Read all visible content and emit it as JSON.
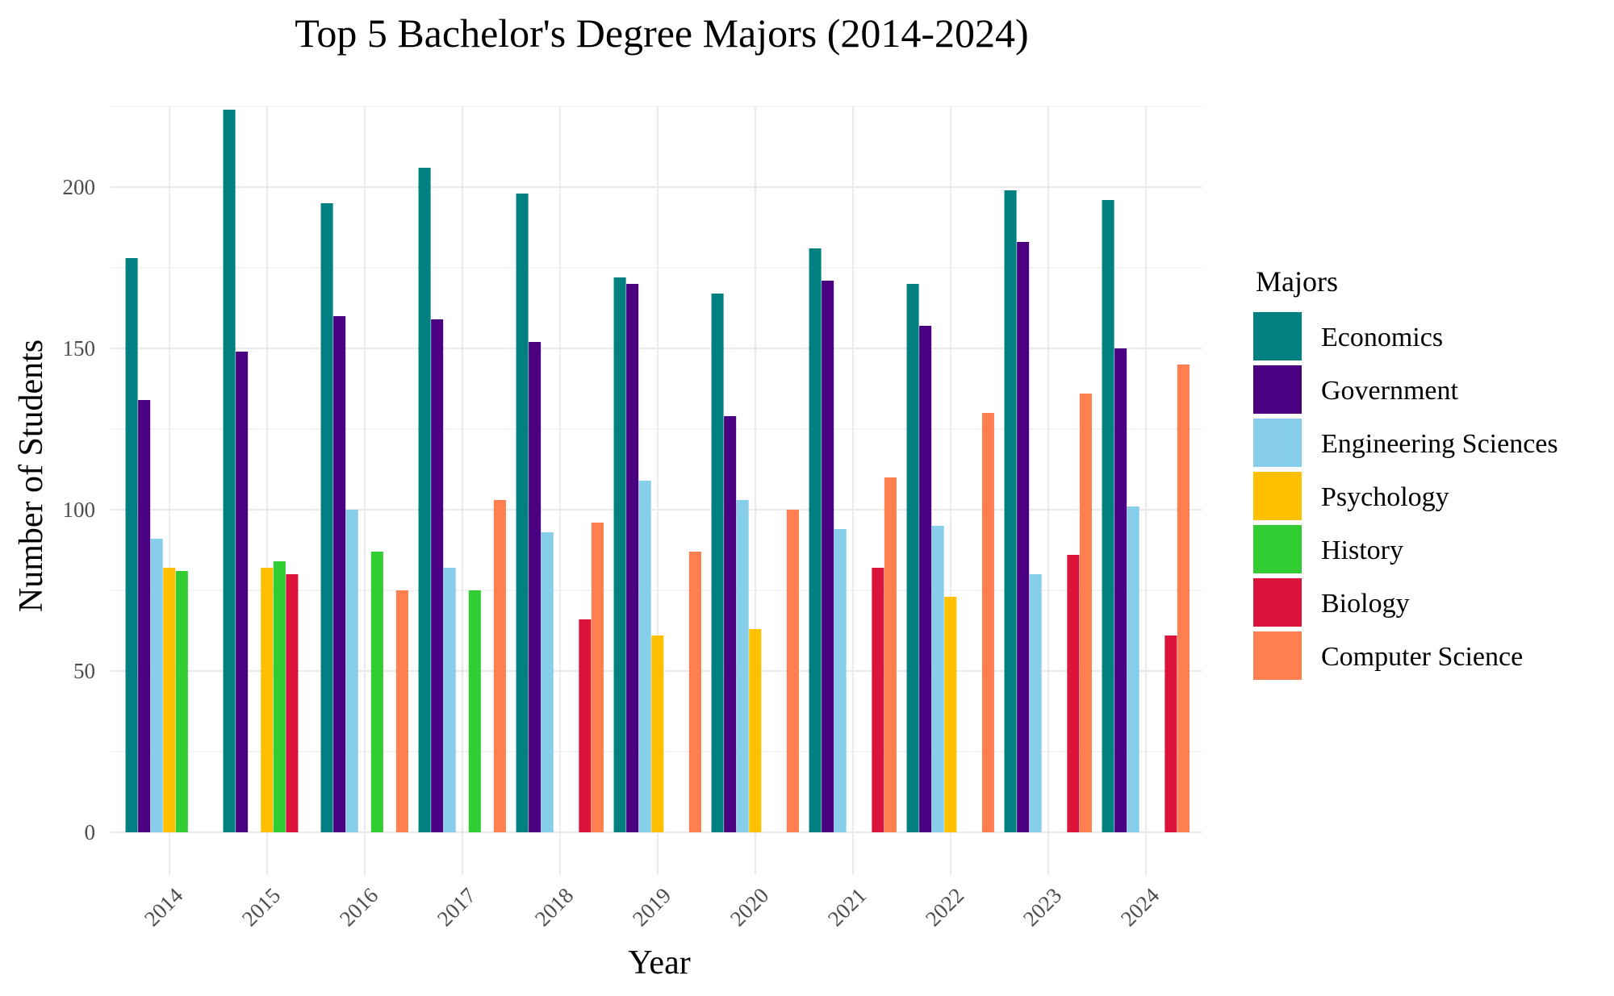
{
  "chart_data": {
    "type": "bar",
    "title": "Top 5 Bachelor's Degree Majors (2014-2024)",
    "xlabel": "Year",
    "ylabel": "Number of Students",
    "ylim": [
      0,
      230
    ],
    "yticks": [
      0,
      50,
      100,
      150,
      200
    ],
    "grid": true,
    "legend": {
      "title": "Majors",
      "position": "right"
    },
    "categories": [
      "2014",
      "2015",
      "2016",
      "2017",
      "2018",
      "2019",
      "2020",
      "2021",
      "2022",
      "2023",
      "2024"
    ],
    "series": [
      {
        "name": "Economics",
        "color": "#008080",
        "values": [
          178,
          224,
          195,
          206,
          198,
          172,
          167,
          181,
          170,
          199,
          196
        ]
      },
      {
        "name": "Government",
        "color": "#4B0082",
        "values": [
          134,
          149,
          160,
          159,
          152,
          170,
          129,
          171,
          157,
          183,
          150
        ]
      },
      {
        "name": "Engineering Sciences",
        "color": "#87CEEB",
        "values": [
          91,
          null,
          100,
          82,
          93,
          109,
          103,
          94,
          95,
          80,
          101
        ]
      },
      {
        "name": "Psychology",
        "color": "#FFC000",
        "values": [
          82,
          82,
          null,
          null,
          null,
          61,
          63,
          null,
          73,
          null,
          null
        ]
      },
      {
        "name": "History",
        "color": "#32CD32",
        "values": [
          81,
          84,
          87,
          75,
          null,
          null,
          null,
          null,
          null,
          null,
          null
        ]
      },
      {
        "name": "Biology",
        "color": "#DC143C",
        "values": [
          null,
          80,
          null,
          null,
          66,
          null,
          null,
          82,
          null,
          86,
          61
        ]
      },
      {
        "name": "Computer Science",
        "color": "#FF7F50",
        "values": [
          null,
          null,
          75,
          103,
          96,
          87,
          100,
          110,
          130,
          136,
          145
        ]
      }
    ]
  }
}
